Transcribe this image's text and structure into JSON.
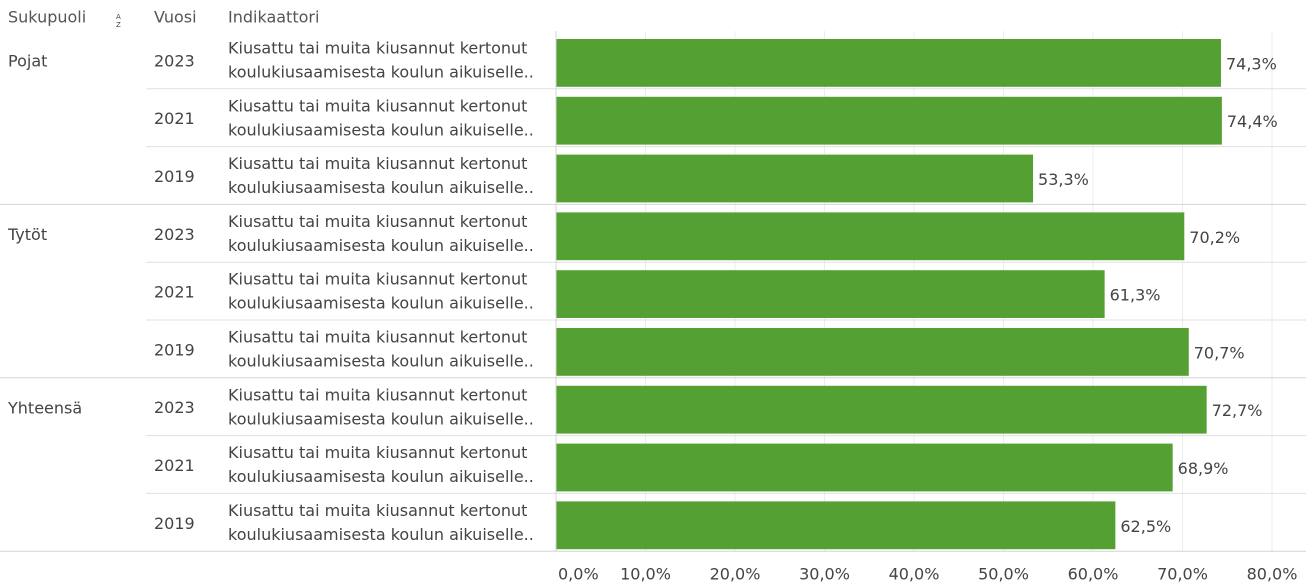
{
  "chart_data": {
    "type": "bar",
    "headers": [
      "Sukupuoli",
      "Vuosi",
      "Indikaattori"
    ],
    "groups": [
      "Pojat",
      "Tytöt",
      "Yhteensä"
    ],
    "years": [
      "2023",
      "2021",
      "2019",
      "2023",
      "2021",
      "2019",
      "2023",
      "2021",
      "2019"
    ],
    "indicators": [
      [
        "Kiusattu tai muita kiusannut kertonut",
        "koulukiusaamisesta koulun aikuiselle.."
      ],
      [
        "Kiusattu tai muita kiusannut kertonut",
        "koulukiusaamisesta koulun aikuiselle.."
      ],
      [
        "Kiusattu tai muita kiusannut kertonut",
        "koulukiusaamisesta koulun aikuiselle.."
      ],
      [
        "Kiusattu tai muita kiusannut kertonut",
        "koulukiusaamisesta koulun aikuiselle.."
      ],
      [
        "Kiusattu tai muita kiusannut kertonut",
        "koulukiusaamisesta koulun aikuiselle.."
      ],
      [
        "Kiusattu tai muita kiusannut kertonut",
        "koulukiusaamisesta koulun aikuiselle.."
      ],
      [
        "Kiusattu tai muita kiusannut kertonut",
        "koulukiusaamisesta koulun aikuiselle.."
      ],
      [
        "Kiusattu tai muita kiusannut kertonut",
        "koulukiusaamisesta koulun aikuiselle.."
      ],
      [
        "Kiusattu tai muita kiusannut kertonut",
        "koulukiusaamisesta koulun aikuiselle.."
      ]
    ],
    "values": [
      74.3,
      74.4,
      53.3,
      70.2,
      61.3,
      70.7,
      72.7,
      68.9,
      62.5
    ],
    "value_labels": [
      "74,3%",
      "74,4%",
      "53,3%",
      "70,2%",
      "61,3%",
      "70,7%",
      "72,7%",
      "68,9%",
      "62,5%"
    ],
    "color": "#55a033",
    "xlim": [
      0,
      80
    ],
    "xticks": [
      {
        "value": 0,
        "label": "0,0%"
      },
      {
        "value": 10,
        "label": "10,0%"
      },
      {
        "value": 20,
        "label": "20,0%"
      },
      {
        "value": 30,
        "label": "30,0%"
      },
      {
        "value": 40,
        "label": "40,0%"
      },
      {
        "value": 50,
        "label": "50,0%"
      },
      {
        "value": 60,
        "label": "60,0%"
      },
      {
        "value": 70,
        "label": "70,0%"
      },
      {
        "value": 80,
        "label": "80,0%"
      }
    ],
    "grid": true
  }
}
